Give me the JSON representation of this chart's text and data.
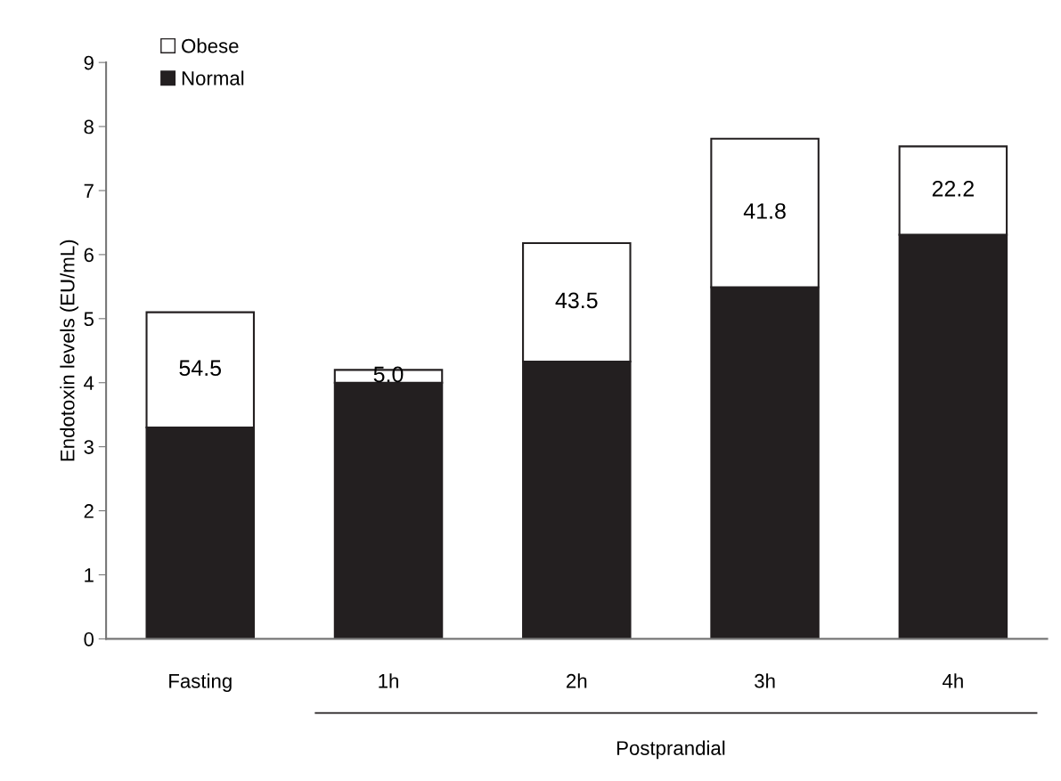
{
  "chart_data": {
    "type": "bar",
    "stacked": true,
    "ylabel": "Endotoxin levels (EU/mL)",
    "categories": [
      "Fasting",
      "1h",
      "2h",
      "3h",
      "4h"
    ],
    "series": [
      {
        "name": "Normal",
        "color": "#231f20",
        "values": [
          3.3,
          4.0,
          4.33,
          5.49,
          6.31
        ]
      },
      {
        "name": "Obese",
        "color": "#ffffff",
        "values": [
          1.8,
          0.2,
          1.85,
          2.32,
          1.38
        ]
      }
    ],
    "ylim": [
      0,
      9
    ],
    "yticks": [
      0,
      1,
      2,
      3,
      4,
      5,
      6,
      7,
      8,
      9
    ],
    "grid": false,
    "legend": "top left",
    "annotations": [
      "54.5",
      "5.0",
      "43.5",
      "41.8",
      "22.2",
      "Postprandial"
    ]
  }
}
